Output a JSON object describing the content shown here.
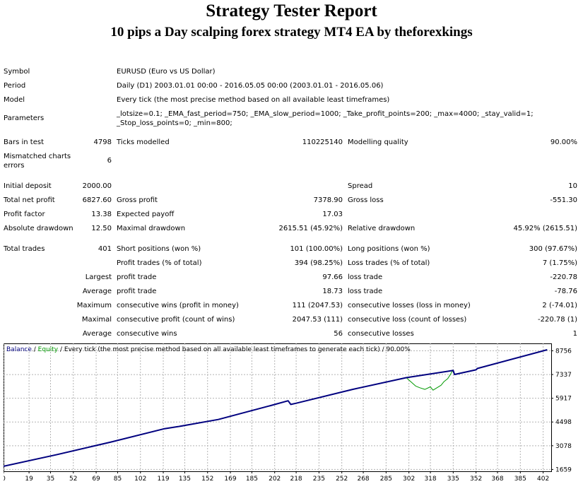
{
  "report": {
    "title": "Strategy Tester Report",
    "subtitle": "10 pips a Day scalping forex strategy MT4 EA by theforexkings"
  },
  "info": {
    "symbol_label": "Symbol",
    "symbol_value": "EURUSD (Euro vs US Dollar)",
    "period_label": "Period",
    "period_value": "Daily (D1) 2003.01.01 00:00 - 2016.05.05 00:00 (2003.01.01 - 2016.05.06)",
    "model_label": "Model",
    "model_value": "Every tick (the most precise method based on all available least timeframes)",
    "parameters_label": "Parameters",
    "parameters_line1": "_lotsize=0.1; _EMA_fast_period=750; _EMA_slow_period=1000; _Take_profit_points=200; _max=4000; _stay_valid=1;",
    "parameters_line2": "_Stop_loss_points=0; _min=800;",
    "bars_label": "Bars in test",
    "bars_value": "4798",
    "ticks_label": "Ticks modelled",
    "ticks_value": "110225140",
    "quality_label": "Modelling quality",
    "quality_value": "90.00%",
    "mismatch_label_1": "Mismatched charts",
    "mismatch_label_2": "errors",
    "mismatch_value": "6"
  },
  "results": {
    "initial_deposit_label": "Initial deposit",
    "initial_deposit_value": "2000.00",
    "spread_label": "Spread",
    "spread_value": "10",
    "net_profit_label": "Total net profit",
    "net_profit_value": "6827.60",
    "gross_profit_label": "Gross profit",
    "gross_profit_value": "7378.90",
    "gross_loss_label": "Gross loss",
    "gross_loss_value": "-551.30",
    "profit_factor_label": "Profit factor",
    "profit_factor_value": "13.38",
    "expected_payoff_label": "Expected payoff",
    "expected_payoff_value": "17.03",
    "abs_drawdown_label": "Absolute drawdown",
    "abs_drawdown_value": "12.50",
    "max_drawdown_label": "Maximal drawdown",
    "max_drawdown_value": "2615.51 (45.92%)",
    "rel_drawdown_label": "Relative drawdown",
    "rel_drawdown_value": "45.92% (2615.51)"
  },
  "trades": {
    "total_label": "Total trades",
    "total_value": "401",
    "short_label": "Short positions (won %)",
    "short_value": "101 (100.00%)",
    "long_label": "Long positions (won %)",
    "long_value": "300 (97.67%)",
    "profit_trades_label": "Profit trades (% of total)",
    "profit_trades_value": "394 (98.25%)",
    "loss_trades_label": "Loss trades (% of total)",
    "loss_trades_value": "7 (1.75%)",
    "largest_label": "Largest",
    "largest_profit_label": "profit trade",
    "largest_profit_value": "97.66",
    "largest_loss_label": "loss trade",
    "largest_loss_value": "-220.78",
    "average_label": "Average",
    "average_profit_label": "profit trade",
    "average_profit_value": "18.73",
    "average_loss_label": "loss trade",
    "average_loss_value": "-78.76",
    "maximum_label": "Maximum",
    "max_cons_wins_label": "consecutive wins (profit in money)",
    "max_cons_wins_value": "111 (2047.53)",
    "max_cons_losses_label": "consecutive losses (loss in money)",
    "max_cons_losses_value": "2 (-74.01)",
    "maximal_label": "Maximal",
    "maximal_profit_label": "consecutive profit (count of wins)",
    "maximal_profit_value": "2047.53 (111)",
    "maximal_loss_label": "consecutive loss (count of losses)",
    "maximal_loss_value": "-220.78 (1)",
    "average2_label": "Average",
    "avg_cons_wins_label": "consecutive wins",
    "avg_cons_wins_value": "56",
    "avg_cons_losses_label": "consecutive losses",
    "avg_cons_losses_value": "1"
  },
  "chart_data": {
    "type": "line",
    "legend": {
      "balance": "Balance",
      "sep1": " / ",
      "equity": "Equity",
      "rest": " / Every tick (the most precise method based on all available least timeframes to generate each tick) / 90.00%"
    },
    "x_ticks": [
      0,
      19,
      35,
      52,
      69,
      85,
      102,
      119,
      135,
      152,
      169,
      185,
      202,
      218,
      235,
      252,
      268,
      285,
      302,
      318,
      335,
      352,
      368,
      385,
      402
    ],
    "y_ticks": [
      1659,
      3078,
      4498,
      5917,
      7337,
      8756
    ],
    "xlim": [
      0,
      408
    ],
    "ylim": [
      1550,
      9200
    ],
    "colors": {
      "balance": "#00007f",
      "equity": "#009900",
      "grid": "#b4b4b4"
    },
    "series": [
      {
        "name": "Balance",
        "x": [
          0,
          40,
          80,
          120,
          130,
          160,
          200,
          212,
          214,
          218,
          260,
          300,
          335,
          336,
          352,
          353,
          405
        ],
        "y": [
          1850,
          2550,
          3300,
          4100,
          4220,
          4650,
          5500,
          5770,
          5550,
          5620,
          6450,
          7150,
          7580,
          7340,
          7620,
          7700,
          8820
        ]
      },
      {
        "name": "Equity",
        "x": [
          0,
          40,
          80,
          120,
          130,
          160,
          200,
          212,
          214,
          218,
          260,
          300,
          307,
          310,
          314,
          318,
          320,
          323,
          326,
          328,
          331,
          333,
          334,
          335,
          336,
          352,
          353,
          405
        ],
        "y": [
          1850,
          2550,
          3300,
          4100,
          4220,
          4650,
          5500,
          5770,
          5550,
          5620,
          6450,
          7150,
          6650,
          6550,
          6450,
          6600,
          6400,
          6550,
          6700,
          6900,
          7100,
          7350,
          7500,
          7580,
          7340,
          7620,
          7700,
          8820
        ]
      }
    ]
  }
}
